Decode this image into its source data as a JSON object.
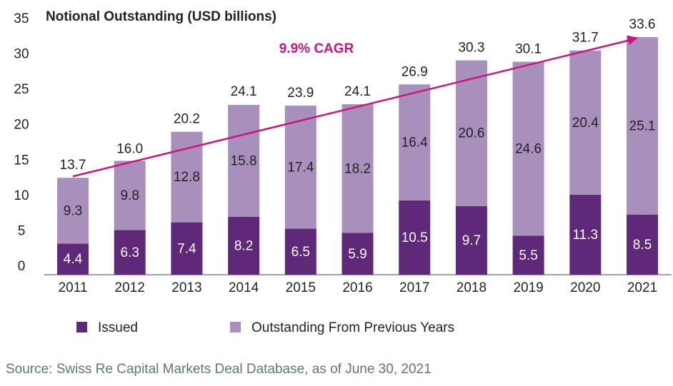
{
  "chart_data": {
    "type": "stacked-bar",
    "title": "Notional Outstanding (USD billions)",
    "categories": [
      "2011",
      "2012",
      "2013",
      "2014",
      "2015",
      "2016",
      "2017",
      "2018",
      "2019",
      "2020",
      "2021"
    ],
    "series": [
      {
        "name": "Issued",
        "color": "#5f2878",
        "values": [
          4.4,
          6.3,
          7.4,
          8.2,
          6.5,
          5.9,
          10.5,
          9.7,
          5.5,
          11.3,
          8.5
        ]
      },
      {
        "name": "Outstanding From Previous Years",
        "color": "#a98fbb",
        "values": [
          9.3,
          9.8,
          12.8,
          15.8,
          17.4,
          18.2,
          16.4,
          20.6,
          24.6,
          20.4,
          25.1
        ]
      }
    ],
    "totals": {
      "values": [
        13.7,
        16,
        20.2,
        24.1,
        23.9,
        24.1,
        26.9,
        30.3,
        30.1,
        31.7,
        33.6
      ],
      "value_labels": [
        "13.7",
        "16.0",
        "20.2",
        "24.1",
        "23.9",
        "24.1",
        "26.9",
        "30.3",
        "30.1",
        "31.7",
        "33.6"
      ]
    },
    "annotation": "9.9% CAGR",
    "annotation_color": "#c8157f",
    "ylim": [
      0,
      35
    ],
    "yticks": [
      0,
      5,
      10,
      15,
      20,
      25,
      30,
      35
    ],
    "grid": false,
    "source": "Source: Swiss Re Capital Markets Deal Database, as of June 30, 2021"
  }
}
